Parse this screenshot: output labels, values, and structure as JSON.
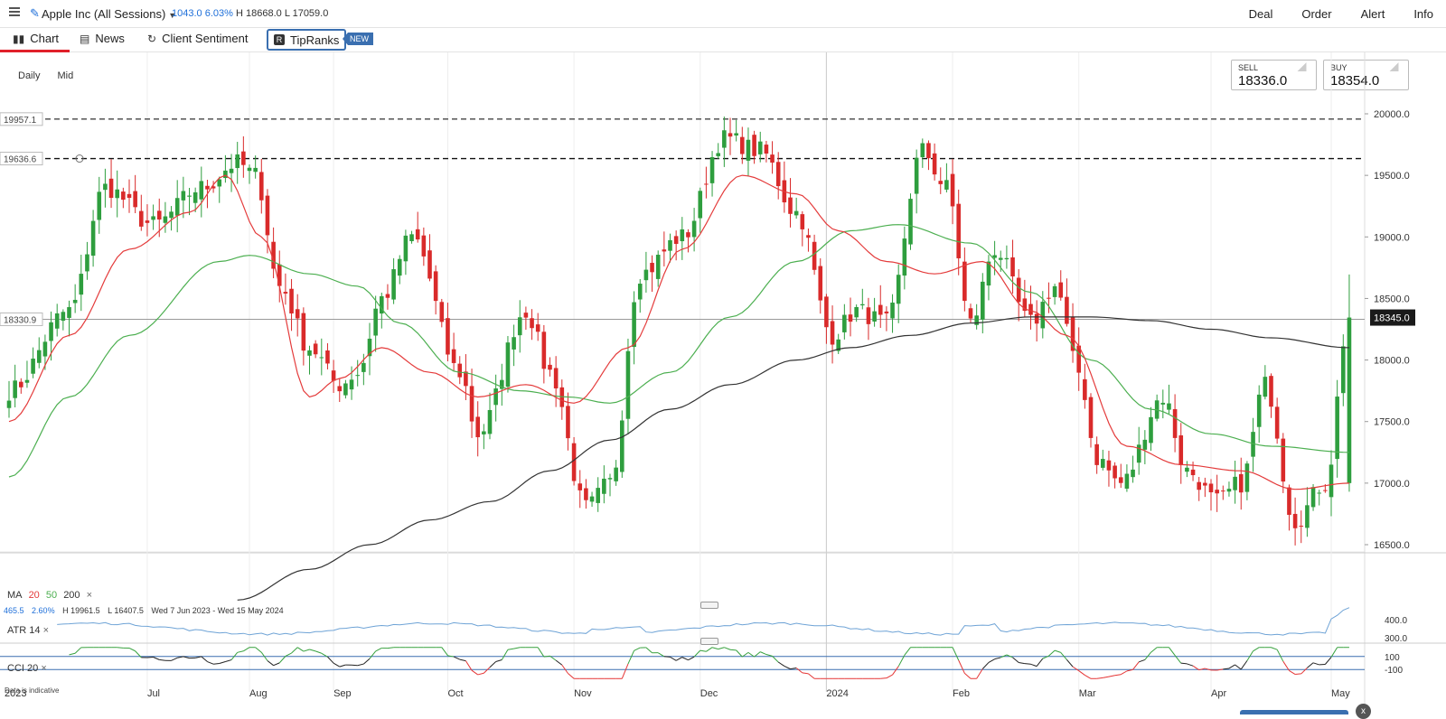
{
  "topbar": {
    "instrument": "Apple Inc (All Sessions)",
    "change": "1043.0",
    "change_pct": "6.03%",
    "high": "H 18668.0",
    "low": "L 17059.0",
    "nav": [
      "Deal",
      "Order",
      "Alert",
      "Info"
    ]
  },
  "tabs": {
    "chart": "Chart",
    "news": "News",
    "sentiment": "Client Sentiment",
    "tipranks": "TipRanks",
    "new_badge": "NEW"
  },
  "controls": {
    "period": "Daily",
    "price_type": "Mid"
  },
  "prices": {
    "sell_label": "SELL",
    "sell_value": "18336.0",
    "buy_label": "BUY",
    "buy_value": "18354.0"
  },
  "legend": {
    "ma": "MA",
    "ma20": "20",
    "ma50": "50",
    "ma200": "200",
    "close": "×"
  },
  "stats": {
    "value": "465.5",
    "pct": "2.60%",
    "high": "H 19961.5",
    "low": "L 16407.5",
    "range": "Wed 7 Jun 2023 - Wed 15 May 2024"
  },
  "atr": {
    "label": "ATR",
    "period": "14",
    "close": "×"
  },
  "cci": {
    "label": "CCI",
    "period": "20",
    "close": "×"
  },
  "disclaimer": "Data is indicative",
  "close_icon_label": "x",
  "colors": {
    "up": "#2e9e3e",
    "down": "#d92a2a",
    "ma20": "#e43b3b",
    "ma50": "#4caf50",
    "ma200": "#333333",
    "atr": "#6ea3d6",
    "accent": "#3a6fb0"
  },
  "chart_data": {
    "type": "candlestick",
    "title": "Apple Inc (All Sessions)",
    "ylim": [
      16100,
      20250
    ],
    "y_ticks": [
      "20000.0",
      "19500.0",
      "19000.0",
      "18500.0",
      "18000.0",
      "17500.0",
      "17000.0",
      "16500.0"
    ],
    "x_labels": [
      "2023",
      "Jul",
      "Aug",
      "Sep",
      "Oct",
      "Nov",
      "Dec",
      "2024",
      "Feb",
      "Mar",
      "Apr",
      "May"
    ],
    "x_label_idx": [
      -20,
      23,
      40,
      54,
      73,
      94,
      115,
      136,
      157,
      178,
      200,
      220
    ],
    "n_bars": 224,
    "price_anchors": [
      [
        0,
        17750
      ],
      [
        10,
        18400
      ],
      [
        16,
        19400
      ],
      [
        24,
        19100
      ],
      [
        32,
        19400
      ],
      [
        38,
        19600
      ],
      [
        41,
        19500
      ],
      [
        45,
        18600
      ],
      [
        50,
        18100
      ],
      [
        55,
        17800
      ],
      [
        58,
        17900
      ],
      [
        62,
        18500
      ],
      [
        67,
        19000
      ],
      [
        75,
        17900
      ],
      [
        78,
        17400
      ],
      [
        86,
        18400
      ],
      [
        90,
        17900
      ],
      [
        96,
        16800
      ],
      [
        100,
        17000
      ],
      [
        105,
        18700
      ],
      [
        112,
        19000
      ],
      [
        119,
        19800
      ],
      [
        125,
        19700
      ],
      [
        131,
        19200
      ],
      [
        137,
        18200
      ],
      [
        141,
        18400
      ],
      [
        146,
        18300
      ],
      [
        152,
        19700
      ],
      [
        156,
        19400
      ],
      [
        160,
        18300
      ],
      [
        164,
        18900
      ],
      [
        170,
        18300
      ],
      [
        174,
        18600
      ],
      [
        178,
        17900
      ],
      [
        181,
        17200
      ],
      [
        185,
        17000
      ],
      [
        192,
        17700
      ],
      [
        196,
        17100
      ],
      [
        201,
        16850
      ],
      [
        205,
        17000
      ],
      [
        209,
        17800
      ],
      [
        214,
        16700
      ],
      [
        219,
        17000
      ],
      [
        223,
        18350
      ]
    ],
    "ma20_anchors": [
      [
        0,
        17500
      ],
      [
        10,
        18200
      ],
      [
        20,
        18900
      ],
      [
        30,
        19200
      ],
      [
        36,
        19500
      ],
      [
        42,
        19000
      ],
      [
        50,
        17700
      ],
      [
        55,
        17850
      ],
      [
        62,
        18100
      ],
      [
        70,
        17900
      ],
      [
        78,
        17700
      ],
      [
        86,
        17800
      ],
      [
        94,
        17650
      ],
      [
        103,
        18100
      ],
      [
        112,
        18900
      ],
      [
        122,
        19500
      ],
      [
        131,
        19350
      ],
      [
        138,
        19050
      ],
      [
        146,
        18800
      ],
      [
        154,
        18700
      ],
      [
        162,
        18800
      ],
      [
        170,
        18400
      ],
      [
        176,
        18200
      ],
      [
        186,
        17300
      ],
      [
        195,
        17150
      ],
      [
        205,
        17100
      ],
      [
        214,
        16950
      ],
      [
        223,
        17000
      ]
    ],
    "ma50_anchors": [
      [
        0,
        17050
      ],
      [
        10,
        17700
      ],
      [
        20,
        18200
      ],
      [
        35,
        18800
      ],
      [
        40,
        18850
      ],
      [
        50,
        18700
      ],
      [
        58,
        18600
      ],
      [
        65,
        18300
      ],
      [
        75,
        17900
      ],
      [
        85,
        17750
      ],
      [
        93,
        17700
      ],
      [
        100,
        17650
      ],
      [
        110,
        17900
      ],
      [
        120,
        18350
      ],
      [
        131,
        18800
      ],
      [
        140,
        19050
      ],
      [
        148,
        19100
      ],
      [
        160,
        18950
      ],
      [
        170,
        18550
      ],
      [
        180,
        18000
      ],
      [
        190,
        17600
      ],
      [
        200,
        17400
      ],
      [
        210,
        17300
      ],
      [
        223,
        17250
      ]
    ],
    "ma200_anchors": [
      [
        38,
        16050
      ],
      [
        50,
        16300
      ],
      [
        60,
        16500
      ],
      [
        70,
        16700
      ],
      [
        80,
        16850
      ],
      [
        90,
        17100
      ],
      [
        100,
        17350
      ],
      [
        110,
        17600
      ],
      [
        120,
        17800
      ],
      [
        131,
        18000
      ],
      [
        140,
        18100
      ],
      [
        150,
        18200
      ],
      [
        160,
        18300
      ],
      [
        170,
        18350
      ],
      [
        180,
        18350
      ],
      [
        190,
        18320
      ],
      [
        200,
        18250
      ],
      [
        210,
        18180
      ],
      [
        223,
        18100
      ]
    ],
    "levels": [
      {
        "value": 19957.1,
        "label": "19957.1",
        "style": "dashed",
        "color": "#444"
      },
      {
        "value": 19636.6,
        "label": "19636.6",
        "style": "dashed",
        "color": "#111"
      },
      {
        "value": 18330.9,
        "label": "18330.9",
        "style": "solid",
        "color": "#999"
      }
    ],
    "last_price": {
      "value": 18345.0,
      "label": "18345.0"
    },
    "atr_ticks": [
      "400.0",
      "300.0"
    ],
    "cci_ticks": [
      "100",
      "-100"
    ]
  }
}
